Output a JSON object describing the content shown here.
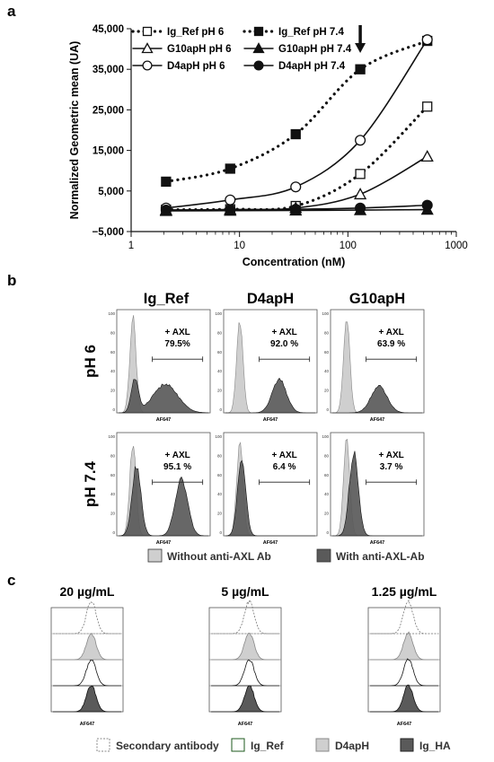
{
  "panels": {
    "a": "a",
    "b": "b",
    "c": "c"
  },
  "chart_data": [
    {
      "id": "a",
      "type": "line",
      "x_scale": "log",
      "xlabel": "Concentration (nM)",
      "ylabel": "Normalized Geometric mean (UA)",
      "xlim": [
        1,
        1000
      ],
      "ylim": [
        -5000,
        45000
      ],
      "x_ticks": [
        "1",
        "10",
        "100",
        "1000"
      ],
      "y_ticks": [
        "45,000",
        "35,000",
        "25,000",
        "15,000",
        "5,000",
        "−5,000"
      ],
      "legend_placement": "top-left",
      "arrow_at": 130,
      "series": [
        {
          "name": "Ig_Ref pH 6",
          "marker": "square-open",
          "line": "dotted",
          "x": [
            2.1,
            8.2,
            33,
            130,
            540
          ],
          "y": [
            400,
            500,
            1300,
            9200,
            25800
          ]
        },
        {
          "name": "Ig_Ref pH 7.4",
          "marker": "square-filled",
          "line": "dotted",
          "x": [
            2.1,
            8.2,
            33,
            130,
            540
          ],
          "y": [
            7300,
            10500,
            19000,
            35000,
            42000
          ]
        },
        {
          "name": "G10apH pH 6",
          "marker": "triangle-open",
          "line": "solid",
          "x": [
            2.1,
            8.2,
            33,
            130,
            540
          ],
          "y": [
            300,
            400,
            800,
            4200,
            13500
          ]
        },
        {
          "name": "G10apH pH 7.4",
          "marker": "triangle-filled",
          "line": "solid",
          "x": [
            2.1,
            8.2,
            33,
            130,
            540
          ],
          "y": [
            100,
            150,
            200,
            300,
            400
          ]
        },
        {
          "name": "D4apH pH 6",
          "marker": "circle-open",
          "line": "solid",
          "x": [
            2.1,
            8.2,
            33,
            130,
            540
          ],
          "y": [
            800,
            2800,
            6000,
            17500,
            42300
          ]
        },
        {
          "name": "D4apH pH 7.4",
          "marker": "circle-filled",
          "line": "solid",
          "x": [
            2.1,
            8.2,
            33,
            130,
            540
          ],
          "y": [
            300,
            400,
            500,
            800,
            1500
          ]
        }
      ]
    },
    {
      "id": "b",
      "type": "histogram-grid",
      "columns": [
        "Ig_Ref",
        "D4apH",
        "G10apH"
      ],
      "rows": [
        "pH 6",
        "pH 7.4"
      ],
      "xlabel": "AF647",
      "y_ticks": [
        "100",
        "80",
        "60",
        "40",
        "20",
        "0"
      ],
      "gate_label": "+ AXL",
      "percent": [
        [
          "79.5%",
          "92.0 %",
          "63.9 %"
        ],
        [
          "95.1 %",
          "6.4 %",
          "3.7 %"
        ]
      ],
      "legend": [
        "Without anti-AXL Ab",
        "With anti-AXL-Ab"
      ]
    },
    {
      "id": "c",
      "type": "histogram-overlay",
      "columns": [
        "20 µg/mL",
        "5 µg/mL",
        "1.25 µg/mL"
      ],
      "xlabel": "AF647",
      "legend": [
        "Secondary antibody",
        "Ig_Ref",
        "D4apH",
        "Ig_HA"
      ]
    }
  ],
  "colors": {
    "light_fill": "#cfcfcf",
    "dark_fill": "#5a5a5a",
    "axis": "#111111"
  }
}
